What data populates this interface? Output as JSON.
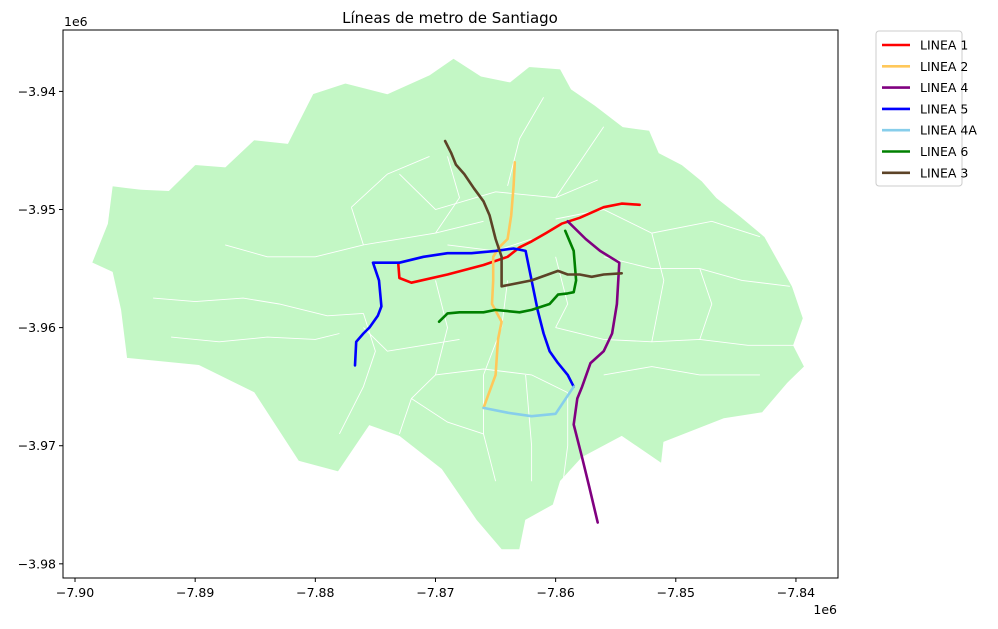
{
  "chart_data": {
    "type": "map",
    "title": "Líneas de metro de Santiago",
    "xlabel": "",
    "ylabel": "",
    "x_offset_label": "1e6",
    "y_offset_label": "1e6",
    "xlim": [
      -7.901,
      -7.8365
    ],
    "ylim": [
      -3.9812,
      -3.9348
    ],
    "xticks": [
      -7.9,
      -7.89,
      -7.88,
      -7.87,
      -7.86,
      -7.85,
      -7.84
    ],
    "xtick_labels": [
      "−7.90",
      "−7.89",
      "−7.88",
      "−7.87",
      "−7.86",
      "−7.85",
      "−7.84"
    ],
    "yticks": [
      -3.94,
      -3.95,
      -3.96,
      -3.97,
      -3.98
    ],
    "ytick_labels": [
      "−3.94",
      "−3.95",
      "−3.96",
      "−3.97",
      "−3.98"
    ],
    "background_color": "#c3f7c5",
    "boundary_color": "#ffffff",
    "legend_position": "outside-top-right",
    "grid": false,
    "region_outline": [
      [
        -7.8945,
        -3.9483
      ],
      [
        -7.8922,
        -3.9484
      ],
      [
        -7.89,
        -3.9462
      ],
      [
        -7.8875,
        -3.9464
      ],
      [
        -7.8851,
        -3.9441
      ],
      [
        -7.8823,
        -3.9444
      ],
      [
        -7.8802,
        -3.9402
      ],
      [
        -7.8775,
        -3.9393
      ],
      [
        -7.874,
        -3.9402
      ],
      [
        -7.8705,
        -3.9386
      ],
      [
        -7.8685,
        -3.9372
      ],
      [
        -7.8662,
        -3.9387
      ],
      [
        -7.8638,
        -3.9392
      ],
      [
        -7.8622,
        -3.9379
      ],
      [
        -7.8596,
        -3.9381
      ],
      [
        -7.8587,
        -3.9398
      ],
      [
        -7.8567,
        -3.9412
      ],
      [
        -7.8544,
        -3.943
      ],
      [
        -7.8522,
        -3.9433
      ],
      [
        -7.8514,
        -3.9452
      ],
      [
        -7.8495,
        -3.9462
      ],
      [
        -7.8478,
        -3.9476
      ],
      [
        -7.8466,
        -3.949
      ],
      [
        -7.8446,
        -3.9506
      ],
      [
        -7.8426,
        -3.9523
      ],
      [
        -7.8415,
        -3.9543
      ],
      [
        -7.8403,
        -3.9565
      ],
      [
        -7.8394,
        -3.9592
      ],
      [
        -7.8402,
        -3.9615
      ],
      [
        -7.8393,
        -3.9633
      ],
      [
        -7.8407,
        -3.9647
      ],
      [
        -7.8428,
        -3.9672
      ],
      [
        -7.846,
        -3.9677
      ],
      [
        -7.851,
        -3.9697
      ],
      [
        -7.8512,
        -3.9715
      ],
      [
        -7.8545,
        -3.9692
      ],
      [
        -7.8578,
        -3.971
      ],
      [
        -7.8596,
        -3.973
      ],
      [
        -7.8602,
        -3.975
      ],
      [
        -7.8625,
        -3.9763
      ],
      [
        -7.863,
        -3.9788
      ],
      [
        -7.8645,
        -3.9788
      ],
      [
        -7.8666,
        -3.9763
      ],
      [
        -7.8695,
        -3.972
      ],
      [
        -7.873,
        -3.9692
      ],
      [
        -7.8755,
        -3.9683
      ],
      [
        -7.8781,
        -3.9722
      ],
      [
        -7.8814,
        -3.9713
      ],
      [
        -7.8851,
        -3.9655
      ],
      [
        -7.8897,
        -3.9632
      ],
      [
        -7.8957,
        -3.9626
      ],
      [
        -7.8962,
        -3.9585
      ],
      [
        -7.8969,
        -3.9553
      ],
      [
        -7.8986,
        -3.9545
      ],
      [
        -7.8973,
        -3.9512
      ],
      [
        -7.8969,
        -3.948
      ]
    ],
    "district_boundaries": [
      [
        [
          -7.877,
          -3.9498
        ],
        [
          -7.874,
          -3.947
        ],
        [
          -7.8705,
          -3.9455
        ]
      ],
      [
        [
          -7.873,
          -3.947
        ],
        [
          -7.87,
          -3.95
        ],
        [
          -7.865,
          -3.9485
        ],
        [
          -7.86,
          -3.949
        ],
        [
          -7.8565,
          -3.9475
        ]
      ],
      [
        [
          -7.877,
          -3.9498
        ],
        [
          -7.876,
          -3.953
        ],
        [
          -7.87,
          -3.952
        ],
        [
          -7.866,
          -3.951
        ]
      ],
      [
        [
          -7.864,
          -3.948
        ],
        [
          -7.863,
          -3.944
        ],
        [
          -7.861,
          -3.9405
        ]
      ],
      [
        [
          -7.86,
          -3.949
        ],
        [
          -7.858,
          -3.946
        ],
        [
          -7.856,
          -3.943
        ]
      ],
      [
        [
          -7.86,
          -3.9508
        ],
        [
          -7.856,
          -3.95
        ],
        [
          -7.852,
          -3.952
        ],
        [
          -7.847,
          -3.951
        ],
        [
          -7.843,
          -3.9523
        ]
      ],
      [
        [
          -7.856,
          -3.954
        ],
        [
          -7.852,
          -3.955
        ],
        [
          -7.848,
          -3.955
        ],
        [
          -7.8445,
          -3.956
        ],
        [
          -7.8405,
          -3.9565
        ]
      ],
      [
        [
          -7.86,
          -3.96
        ],
        [
          -7.856,
          -3.961
        ],
        [
          -7.852,
          -3.9612
        ],
        [
          -7.848,
          -3.961
        ],
        [
          -7.844,
          -3.9615
        ],
        [
          -7.8402,
          -3.9615
        ]
      ],
      [
        [
          -7.856,
          -3.964
        ],
        [
          -7.852,
          -3.9633
        ],
        [
          -7.848,
          -3.964
        ],
        [
          -7.843,
          -3.964
        ]
      ],
      [
        [
          -7.869,
          -3.953
        ],
        [
          -7.865,
          -3.9535
        ],
        [
          -7.862,
          -3.9525
        ]
      ],
      [
        [
          -7.8875,
          -3.953
        ],
        [
          -7.884,
          -3.954
        ],
        [
          -7.88,
          -3.954
        ],
        [
          -7.876,
          -3.953
        ]
      ],
      [
        [
          -7.8935,
          -3.9575
        ],
        [
          -7.89,
          -3.9578
        ],
        [
          -7.886,
          -3.9575
        ],
        [
          -7.883,
          -3.958
        ],
        [
          -7.879,
          -3.959
        ],
        [
          -7.876,
          -3.9588
        ]
      ],
      [
        [
          -7.892,
          -3.9608
        ],
        [
          -7.888,
          -3.9612
        ],
        [
          -7.884,
          -3.9608
        ],
        [
          -7.88,
          -3.961
        ],
        [
          -7.878,
          -3.9605
        ]
      ],
      [
        [
          -7.876,
          -3.96
        ],
        [
          -7.874,
          -3.962
        ],
        [
          -7.871,
          -3.9615
        ],
        [
          -7.868,
          -3.961
        ]
      ],
      [
        [
          -7.87,
          -3.964
        ],
        [
          -7.866,
          -3.9635
        ],
        [
          -7.862,
          -3.964
        ],
        [
          -7.859,
          -3.9655
        ]
      ],
      [
        [
          -7.872,
          -3.966
        ],
        [
          -7.869,
          -3.968
        ],
        [
          -7.866,
          -3.969
        ]
      ],
      [
        [
          -7.866,
          -3.964
        ],
        [
          -7.866,
          -3.969
        ],
        [
          -7.865,
          -3.973
        ]
      ],
      [
        [
          -7.8625,
          -3.964
        ],
        [
          -7.862,
          -3.97
        ],
        [
          -7.862,
          -3.973
        ]
      ],
      [
        [
          -7.859,
          -3.9655
        ],
        [
          -7.859,
          -3.97
        ],
        [
          -7.8595,
          -3.974
        ]
      ],
      [
        [
          -7.87,
          -3.956
        ],
        [
          -7.869,
          -3.96
        ],
        [
          -7.87,
          -3.964
        ],
        [
          -7.872,
          -3.966
        ],
        [
          -7.873,
          -3.969
        ]
      ],
      [
        [
          -7.876,
          -3.9588
        ],
        [
          -7.875,
          -3.962
        ],
        [
          -7.876,
          -3.965
        ],
        [
          -7.878,
          -3.969
        ]
      ],
      [
        [
          -7.864,
          -3.956
        ],
        [
          -7.8645,
          -3.96
        ],
        [
          -7.866,
          -3.964
        ]
      ],
      [
        [
          -7.869,
          -3.9455
        ],
        [
          -7.868,
          -3.949
        ],
        [
          -7.87,
          -3.952
        ]
      ],
      [
        [
          -7.86,
          -3.954
        ],
        [
          -7.859,
          -3.958
        ],
        [
          -7.86,
          -3.96
        ]
      ],
      [
        [
          -7.852,
          -3.952
        ],
        [
          -7.851,
          -3.956
        ],
        [
          -7.852,
          -3.9612
        ]
      ],
      [
        [
          -7.848,
          -3.955
        ],
        [
          -7.847,
          -3.958
        ],
        [
          -7.848,
          -3.961
        ]
      ]
    ],
    "series": [
      {
        "name": "LINEA 1",
        "color": "#ff0000",
        "points": [
          [
            -7.8731,
            -3.9545
          ],
          [
            -7.873,
            -3.9558
          ],
          [
            -7.872,
            -3.9562
          ],
          [
            -7.869,
            -3.9555
          ],
          [
            -7.866,
            -3.9547
          ],
          [
            -7.864,
            -3.954
          ],
          [
            -7.863,
            -3.9532
          ],
          [
            -7.862,
            -3.9527
          ],
          [
            -7.8608,
            -3.952
          ],
          [
            -7.8595,
            -3.9512
          ],
          [
            -7.858,
            -3.9507
          ],
          [
            -7.856,
            -3.9498
          ],
          [
            -7.8545,
            -3.9495
          ],
          [
            -7.853,
            -3.9496
          ]
        ]
      },
      {
        "name": "LINEA 2",
        "color": "#ffc85a",
        "points": [
          [
            -7.8634,
            -3.946
          ],
          [
            -7.8635,
            -3.948
          ],
          [
            -7.8637,
            -3.9505
          ],
          [
            -7.864,
            -3.9525
          ],
          [
            -7.8647,
            -3.9532
          ],
          [
            -7.8652,
            -3.954
          ],
          [
            -7.8652,
            -3.956
          ],
          [
            -7.8653,
            -3.958
          ],
          [
            -7.8645,
            -3.9595
          ],
          [
            -7.8648,
            -3.961
          ],
          [
            -7.865,
            -3.964
          ],
          [
            -7.866,
            -3.9668
          ]
        ]
      },
      {
        "name": "LINEA 4",
        "color": "#800080",
        "points": [
          [
            -7.8565,
            -3.9765
          ],
          [
            -7.8572,
            -3.9735
          ],
          [
            -7.8578,
            -3.971
          ],
          [
            -7.8585,
            -3.9682
          ],
          [
            -7.8582,
            -3.966
          ],
          [
            -7.8578,
            -3.965
          ],
          [
            -7.8571,
            -3.963
          ],
          [
            -7.856,
            -3.962
          ],
          [
            -7.8553,
            -3.9605
          ],
          [
            -7.8549,
            -3.958
          ],
          [
            -7.8547,
            -3.9545
          ],
          [
            -7.8563,
            -3.9535
          ],
          [
            -7.8575,
            -3.9525
          ],
          [
            -7.859,
            -3.951
          ]
        ]
      },
      {
        "name": "LINEA 5",
        "color": "#0000ff",
        "points": [
          [
            -7.8767,
            -3.9632
          ],
          [
            -7.8766,
            -3.9612
          ],
          [
            -7.876,
            -3.9605
          ],
          [
            -7.8755,
            -3.96
          ],
          [
            -7.8748,
            -3.959
          ],
          [
            -7.8745,
            -3.9582
          ],
          [
            -7.8747,
            -3.956
          ],
          [
            -7.8752,
            -3.9545
          ],
          [
            -7.873,
            -3.9545
          ],
          [
            -7.871,
            -3.954
          ],
          [
            -7.869,
            -3.9537
          ],
          [
            -7.867,
            -3.9537
          ],
          [
            -7.865,
            -3.9535
          ],
          [
            -7.8635,
            -3.9533
          ],
          [
            -7.8625,
            -3.9535
          ],
          [
            -7.862,
            -3.956
          ],
          [
            -7.8615,
            -3.9585
          ],
          [
            -7.861,
            -3.9605
          ],
          [
            -7.8605,
            -3.962
          ],
          [
            -7.8598,
            -3.963
          ],
          [
            -7.859,
            -3.964
          ],
          [
            -7.8585,
            -3.965
          ]
        ]
      },
      {
        "name": "LINEA 4A",
        "color": "#87ceeb",
        "points": [
          [
            -7.866,
            -3.9668
          ],
          [
            -7.864,
            -3.9672
          ],
          [
            -7.862,
            -3.9675
          ],
          [
            -7.86,
            -3.9673
          ],
          [
            -7.8585,
            -3.965
          ]
        ]
      },
      {
        "name": "LINEA 6",
        "color": "#008000",
        "points": [
          [
            -7.8697,
            -3.9595
          ],
          [
            -7.869,
            -3.9588
          ],
          [
            -7.868,
            -3.9587
          ],
          [
            -7.866,
            -3.9587
          ],
          [
            -7.865,
            -3.9585
          ],
          [
            -7.863,
            -3.9587
          ],
          [
            -7.862,
            -3.9585
          ],
          [
            -7.8605,
            -3.958
          ],
          [
            -7.8598,
            -3.9572
          ],
          [
            -7.859,
            -3.9571
          ],
          [
            -7.8585,
            -3.957
          ],
          [
            -7.8583,
            -3.956
          ],
          [
            -7.8585,
            -3.9535
          ],
          [
            -7.8592,
            -3.9518
          ]
        ]
      },
      {
        "name": "LINEA 3",
        "color": "#5c4327",
        "points": [
          [
            -7.8692,
            -3.9442
          ],
          [
            -7.8687,
            -3.9452
          ],
          [
            -7.8683,
            -3.9462
          ],
          [
            -7.8676,
            -3.947
          ],
          [
            -7.8668,
            -3.9482
          ],
          [
            -7.866,
            -3.9493
          ],
          [
            -7.8655,
            -3.9505
          ],
          [
            -7.865,
            -3.9525
          ],
          [
            -7.8645,
            -3.954
          ],
          [
            -7.8645,
            -3.9565
          ],
          [
            -7.862,
            -3.956
          ],
          [
            -7.8598,
            -3.9552
          ],
          [
            -7.859,
            -3.9555
          ],
          [
            -7.858,
            -3.9555
          ],
          [
            -7.857,
            -3.9557
          ],
          [
            -7.856,
            -3.9555
          ],
          [
            -7.8545,
            -3.9554
          ]
        ]
      }
    ]
  }
}
